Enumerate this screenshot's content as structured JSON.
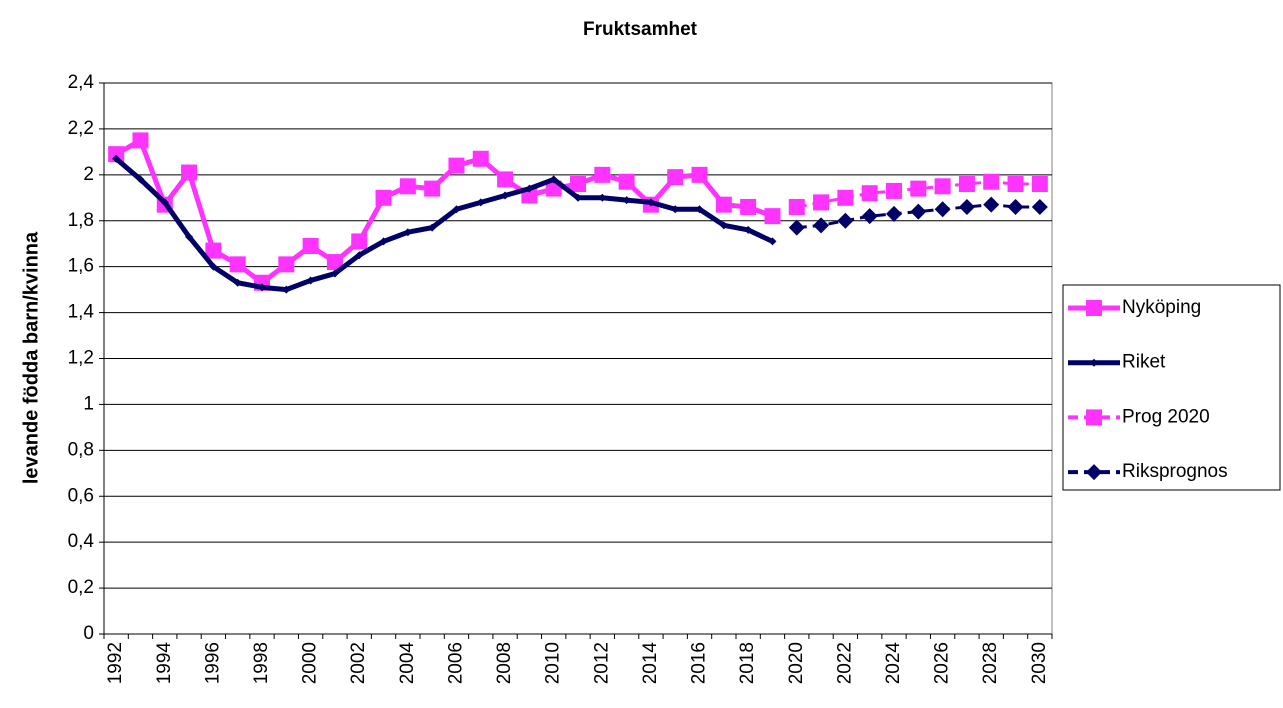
{
  "chart_data": {
    "type": "line",
    "title": "Fruktsamhet",
    "y_label": "levande födda barn/kvinna",
    "categories": [
      "1992",
      null,
      "1994",
      null,
      "1996",
      null,
      "1998",
      null,
      "2000",
      null,
      "2002",
      null,
      "2004",
      null,
      "2006",
      null,
      "2008",
      null,
      "2010",
      null,
      "2012",
      null,
      "2014",
      null,
      "2016",
      null,
      "2018",
      null,
      "2020",
      null,
      "2022",
      null,
      "2024",
      null,
      "2026",
      null,
      "2028",
      null,
      "2030"
    ],
    "ylim": [
      0,
      2.4
    ],
    "yticks": [
      0,
      {
        "value": 0.2,
        "label": "0,2"
      },
      {
        "value": 0.4,
        "label": "0,4"
      },
      {
        "value": 0.6,
        "label": "0,6"
      },
      {
        "value": 0.8,
        "label": "0,8"
      },
      1,
      {
        "value": 1.2,
        "label": "1,2"
      },
      {
        "value": 1.4,
        "label": "1,4"
      },
      {
        "value": 1.6,
        "label": "1,6"
      },
      {
        "value": 1.8,
        "label": "1,8"
      },
      2,
      {
        "value": 2.2,
        "label": "2,2"
      },
      {
        "value": 2.4,
        "label": "2,4"
      }
    ],
    "grid": true,
    "legend": "right",
    "series": [
      {
        "name": "Nyköping",
        "color": "#ff33ff",
        "dash": "solid",
        "marker": "square",
        "values": [
          2.09,
          2.15,
          1.87,
          2.01,
          1.67,
          1.61,
          1.53,
          1.61,
          1.69,
          1.62,
          1.71,
          1.9,
          1.95,
          1.94,
          2.04,
          2.07,
          1.98,
          1.91,
          1.94,
          1.96,
          2.0,
          1.97,
          1.87,
          1.99,
          2.0,
          1.87,
          1.86,
          1.82,
          null,
          null,
          null,
          null,
          null,
          null,
          null,
          null,
          null,
          null,
          null
        ]
      },
      {
        "name": "Riket",
        "color": "#000066",
        "dash": "solid",
        "marker": "small-diamond",
        "values": [
          2.07,
          1.98,
          1.88,
          1.73,
          1.6,
          1.53,
          1.51,
          1.5,
          1.54,
          1.57,
          1.65,
          1.71,
          1.75,
          1.77,
          1.85,
          1.88,
          1.91,
          1.94,
          1.98,
          1.9,
          1.9,
          1.89,
          1.88,
          1.85,
          1.85,
          1.78,
          1.76,
          1.71,
          null,
          null,
          null,
          null,
          null,
          null,
          null,
          null,
          null,
          null,
          null
        ]
      },
      {
        "name": "Prog 2020",
        "color": "#ff33ff",
        "dash": "dashed",
        "marker": "square",
        "values": [
          null,
          null,
          null,
          null,
          null,
          null,
          null,
          null,
          null,
          null,
          null,
          null,
          null,
          null,
          null,
          null,
          null,
          null,
          null,
          null,
          null,
          null,
          null,
          null,
          null,
          null,
          null,
          null,
          1.86,
          1.88,
          1.9,
          1.92,
          1.93,
          1.94,
          1.95,
          1.96,
          1.97,
          1.96,
          1.96
        ]
      },
      {
        "name": "Riksprognos",
        "color": "#000066",
        "dash": "dashed",
        "marker": "diamond",
        "values": [
          null,
          null,
          null,
          null,
          null,
          null,
          null,
          null,
          null,
          null,
          null,
          null,
          null,
          null,
          null,
          null,
          null,
          null,
          null,
          null,
          null,
          null,
          null,
          null,
          null,
          null,
          null,
          null,
          1.77,
          1.78,
          1.8,
          1.82,
          1.83,
          1.84,
          1.85,
          1.86,
          1.87,
          1.86,
          1.86
        ]
      }
    ]
  }
}
